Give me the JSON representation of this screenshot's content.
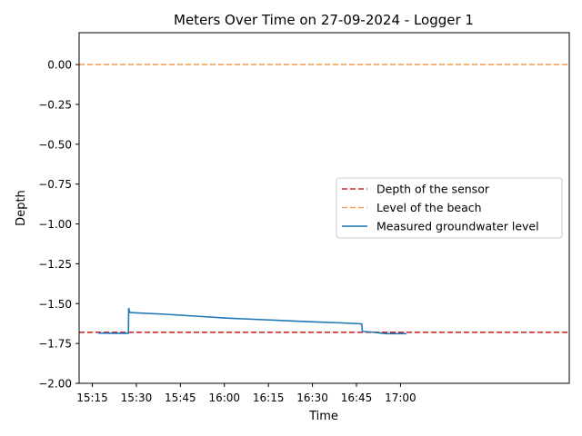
{
  "chart_data": {
    "type": "line",
    "title": "Meters Over Time on 27-09-2024 - Logger 1",
    "xlabel": "Time",
    "ylabel": "Depth",
    "x_unit": "minutes since midnight (27-09-2024)",
    "xlim": [
      910.5,
      1077.5
    ],
    "ylim": [
      -2.0,
      0.2
    ],
    "xticks": [
      {
        "value": 915,
        "label": "15:15"
      },
      {
        "value": 930,
        "label": "15:30"
      },
      {
        "value": 945,
        "label": "15:45"
      },
      {
        "value": 960,
        "label": "16:00"
      },
      {
        "value": 975,
        "label": "16:15"
      },
      {
        "value": 990,
        "label": "16:30"
      },
      {
        "value": 1005,
        "label": "16:45"
      },
      {
        "value": 1020,
        "label": "17:00"
      }
    ],
    "yticks": [
      {
        "value": 0.0,
        "label": "0.00"
      },
      {
        "value": -0.25,
        "label": "−0.25"
      },
      {
        "value": -0.5,
        "label": "−0.50"
      },
      {
        "value": -0.75,
        "label": "−0.75"
      },
      {
        "value": -1.0,
        "label": "−1.00"
      },
      {
        "value": -1.25,
        "label": "−1.25"
      },
      {
        "value": -1.5,
        "label": "−1.50"
      },
      {
        "value": -1.75,
        "label": "−1.75"
      },
      {
        "value": -2.0,
        "label": "−2.00"
      }
    ],
    "grid": false,
    "legend_position": "center-right",
    "series": [
      {
        "name": "Depth of the sensor",
        "kind": "hline",
        "y": -1.68,
        "color": "#d62728",
        "dash": true
      },
      {
        "name": "Level of the beach",
        "kind": "hline",
        "y": 0.0,
        "color": "#f4a259",
        "dash": true
      },
      {
        "name": "Measured groundwater level",
        "kind": "line",
        "color": "#1f77b4",
        "points": [
          [
            917,
            -1.685
          ],
          [
            923,
            -1.686
          ],
          [
            927.3,
            -1.686
          ],
          [
            927.4,
            -1.53
          ],
          [
            927.8,
            -1.556
          ],
          [
            930,
            -1.558
          ],
          [
            940,
            -1.567
          ],
          [
            950,
            -1.578
          ],
          [
            960,
            -1.59
          ],
          [
            970,
            -1.598
          ],
          [
            980,
            -1.606
          ],
          [
            990,
            -1.614
          ],
          [
            1000,
            -1.621
          ],
          [
            1006.8,
            -1.627
          ],
          [
            1007,
            -1.675
          ],
          [
            1010,
            -1.678
          ],
          [
            1015,
            -1.688
          ],
          [
            1022,
            -1.688
          ]
        ]
      }
    ]
  }
}
